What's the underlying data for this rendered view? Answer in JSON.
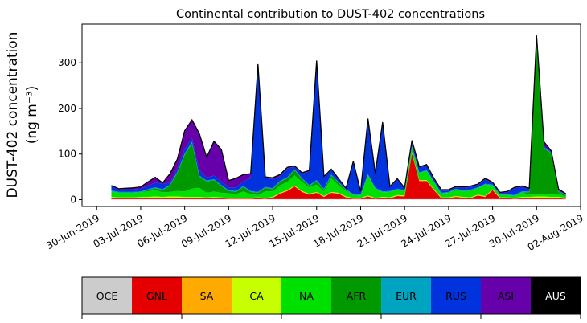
{
  "chart_data": {
    "type": "area",
    "title": "Continental contribution to DUST-402 concentrations",
    "ylabel_line1": "DUST-402 concentration",
    "ylabel_line2": "(ng m⁻³)",
    "ylim": [
      -15,
      385
    ],
    "yticks": [
      0,
      100,
      200,
      300
    ],
    "xlim": [
      "2019-06-29",
      "2019-08-02"
    ],
    "start_date": "2019-07-01",
    "xticks": [
      {
        "date": "2019-06-30",
        "label": "30-Jun-2019"
      },
      {
        "date": "2019-07-03",
        "label": "03-Jul-2019"
      },
      {
        "date": "2019-07-06",
        "label": "06-Jul-2019"
      },
      {
        "date": "2019-07-09",
        "label": "09-Jul-2019"
      },
      {
        "date": "2019-07-12",
        "label": "12-Jul-2019"
      },
      {
        "date": "2019-07-15",
        "label": "15-Jul-2019"
      },
      {
        "date": "2019-07-18",
        "label": "18-Jul-2019"
      },
      {
        "date": "2019-07-21",
        "label": "21-Jul-2019"
      },
      {
        "date": "2019-07-24",
        "label": "24-Jul-2019"
      },
      {
        "date": "2019-07-27",
        "label": "27-Jul-2019"
      },
      {
        "date": "2019-07-30",
        "label": "30-Jul-2019"
      },
      {
        "date": "2019-08-02",
        "label": "02-Aug-2019"
      }
    ],
    "x_days": [
      0,
      0.5,
      1,
      1.5,
      2,
      2.5,
      3,
      3.5,
      4,
      4.5,
      5,
      5.5,
      6,
      6.5,
      7,
      7.5,
      8,
      8.5,
      9,
      9.5,
      10,
      10.5,
      11,
      11.5,
      12,
      12.5,
      13,
      13.5,
      14,
      14.5,
      15,
      15.5,
      16,
      16.5,
      17,
      17.5,
      18,
      18.5,
      19,
      19.5,
      20,
      20.5,
      21,
      21.5,
      22,
      22.5,
      23,
      23.5,
      24,
      24.5,
      25,
      25.5,
      26,
      26.5,
      27,
      27.5,
      28,
      28.5,
      29,
      29.5,
      30,
      30.5,
      31
    ],
    "series": [
      {
        "name": "OCE",
        "color": "#cccccc",
        "values": [
          1,
          1,
          1,
          1,
          1,
          1,
          1,
          1,
          1,
          1,
          1,
          1,
          1,
          1,
          1,
          1,
          1,
          1,
          1,
          1,
          1,
          1,
          1,
          1,
          1,
          1,
          1,
          1,
          1,
          1,
          1,
          1,
          1,
          1,
          1,
          1,
          1,
          1,
          1,
          1,
          1,
          1,
          1,
          1,
          1,
          1,
          1,
          1,
          1,
          1,
          1,
          1,
          1,
          1,
          1,
          1,
          1,
          1,
          1,
          1,
          1,
          1,
          1
        ]
      },
      {
        "name": "GNL",
        "color": "#e50000",
        "values": [
          3,
          2,
          2,
          2,
          2,
          2,
          3,
          2,
          3,
          2,
          2,
          2,
          3,
          2,
          2,
          2,
          1,
          1,
          1,
          1,
          2,
          1,
          3,
          12,
          18,
          28,
          16,
          10,
          14,
          5,
          14,
          12,
          4,
          1,
          1,
          6,
          1,
          3,
          2,
          7,
          6,
          100,
          40,
          40,
          20,
          2,
          2,
          5,
          3,
          2,
          8,
          5,
          20,
          2,
          2,
          1,
          2,
          2,
          2,
          2,
          2,
          2,
          1
        ]
      },
      {
        "name": "SA",
        "color": "#ffaa00",
        "values": [
          1,
          1,
          1,
          1,
          1,
          1,
          1,
          1,
          1,
          1,
          1,
          1,
          1,
          1,
          1,
          1,
          1,
          1,
          1,
          1,
          1,
          1,
          1,
          1,
          1,
          1,
          1,
          1,
          1,
          1,
          1,
          1,
          1,
          1,
          1,
          1,
          1,
          1,
          1,
          1,
          1,
          1,
          1,
          1,
          1,
          1,
          1,
          1,
          1,
          1,
          1,
          1,
          1,
          1,
          1,
          1,
          1,
          1,
          1,
          1,
          1,
          1,
          1
        ]
      },
      {
        "name": "CA",
        "color": "#c8ff00",
        "values": [
          1,
          1,
          1,
          1,
          2,
          2,
          2,
          2,
          2,
          3,
          2,
          2,
          1,
          1,
          2,
          1,
          1,
          1,
          1,
          1,
          1,
          1,
          1,
          1,
          1,
          1,
          1,
          1,
          1,
          1,
          1,
          1,
          1,
          1,
          1,
          1,
          1,
          1,
          1,
          1,
          1,
          1,
          1,
          1,
          1,
          1,
          1,
          1,
          1,
          1,
          1,
          1,
          1,
          1,
          1,
          1,
          2,
          2,
          3,
          3,
          2,
          2,
          1
        ]
      },
      {
        "name": "NA",
        "color": "#00e000",
        "values": [
          12,
          10,
          10,
          10,
          10,
          12,
          14,
          10,
          10,
          12,
          12,
          18,
          20,
          10,
          12,
          10,
          10,
          8,
          14,
          8,
          5,
          14,
          12,
          16,
          18,
          22,
          20,
          14,
          16,
          10,
          30,
          16,
          12,
          6,
          5,
          45,
          20,
          10,
          12,
          12,
          10,
          12,
          15,
          20,
          15,
          8,
          10,
          14,
          12,
          15,
          14,
          25,
          8,
          5,
          5,
          4,
          10,
          5,
          4,
          6,
          5,
          6,
          3
        ]
      },
      {
        "name": "AFR",
        "color": "#009900",
        "values": [
          0,
          0,
          0,
          0,
          0,
          3,
          4,
          5,
          14,
          40,
          80,
          100,
          25,
          25,
          25,
          15,
          5,
          5,
          10,
          5,
          5,
          8,
          5,
          8,
          8,
          12,
          6,
          3,
          8,
          4,
          6,
          6,
          2,
          0,
          0,
          0,
          0,
          0,
          0,
          0,
          0,
          0,
          0,
          0,
          0,
          0,
          0,
          0,
          0,
          0,
          0,
          0,
          0,
          0,
          0,
          0,
          0,
          5,
          340,
          100,
          90,
          5,
          3
        ]
      },
      {
        "name": "EUR",
        "color": "#00a3c0",
        "values": [
          2,
          2,
          2,
          2,
          2,
          2,
          2,
          2,
          2,
          2,
          3,
          3,
          2,
          2,
          2,
          2,
          2,
          2,
          2,
          2,
          2,
          2,
          2,
          2,
          2,
          2,
          2,
          2,
          2,
          2,
          2,
          2,
          2,
          2,
          2,
          2,
          2,
          2,
          2,
          2,
          2,
          2,
          2,
          2,
          2,
          2,
          2,
          2,
          2,
          2,
          2,
          2,
          2,
          2,
          2,
          2,
          2,
          2,
          2,
          2,
          2,
          2,
          1
        ]
      },
      {
        "name": "RUS",
        "color": "#0033dd",
        "values": [
          10,
          5,
          6,
          6,
          6,
          8,
          10,
          12,
          4,
          8,
          10,
          8,
          12,
          6,
          8,
          8,
          6,
          8,
          10,
          28,
          270,
          20,
          20,
          10,
          20,
          5,
          10,
          30,
          260,
          25,
          10,
          5,
          0,
          70,
          5,
          120,
          30,
          150,
          8,
          20,
          3,
          5,
          10,
          10,
          5,
          5,
          3,
          3,
          6,
          6,
          5,
          10,
          3,
          2,
          4,
          15,
          10,
          5,
          2,
          2,
          2,
          2,
          1
        ]
      },
      {
        "name": "ASI",
        "color": "#6600aa",
        "values": [
          1,
          2,
          2,
          3,
          4,
          8,
          12,
          2,
          20,
          20,
          40,
          40,
          80,
          45,
          75,
          70,
          15,
          20,
          15,
          10,
          10,
          2,
          3,
          4,
          2,
          2,
          2,
          2,
          2,
          2,
          2,
          2,
          2,
          2,
          2,
          2,
          2,
          2,
          2,
          2,
          2,
          8,
          2,
          2,
          2,
          2,
          2,
          2,
          2,
          2,
          2,
          2,
          2,
          2,
          2,
          2,
          2,
          2,
          5,
          10,
          2,
          2,
          1
        ]
      },
      {
        "name": "AUS",
        "color": "#000000",
        "values": [
          0,
          0,
          0,
          0,
          0,
          0,
          0,
          0,
          0,
          0,
          0,
          0,
          0,
          0,
          0,
          0,
          0,
          0,
          0,
          0,
          0,
          0,
          0,
          0,
          0,
          0,
          0,
          0,
          0,
          0,
          0,
          0,
          0,
          0,
          0,
          0,
          0,
          0,
          0,
          0,
          0,
          0,
          0,
          0,
          0,
          0,
          0,
          0,
          0,
          0,
          0,
          0,
          0,
          0,
          0,
          0,
          0,
          0,
          0,
          0,
          0,
          0,
          0
        ]
      }
    ],
    "legend": {
      "placement": "bottom",
      "entries": [
        {
          "label": "OCE",
          "color": "#cccccc",
          "text_color": "#000000"
        },
        {
          "label": "GNL",
          "color": "#e50000",
          "text_color": "#000000"
        },
        {
          "label": "SA",
          "color": "#ffaa00",
          "text_color": "#000000"
        },
        {
          "label": "CA",
          "color": "#c8ff00",
          "text_color": "#000000"
        },
        {
          "label": "NA",
          "color": "#00e000",
          "text_color": "#000000"
        },
        {
          "label": "AFR",
          "color": "#009900",
          "text_color": "#000000"
        },
        {
          "label": "EUR",
          "color": "#00a3c0",
          "text_color": "#000000"
        },
        {
          "label": "RUS",
          "color": "#0033dd",
          "text_color": "#000000"
        },
        {
          "label": "ASI",
          "color": "#6600aa",
          "text_color": "#000000"
        },
        {
          "label": "AUS",
          "color": "#000000",
          "text_color": "#ffffff"
        }
      ]
    },
    "grid": false
  }
}
